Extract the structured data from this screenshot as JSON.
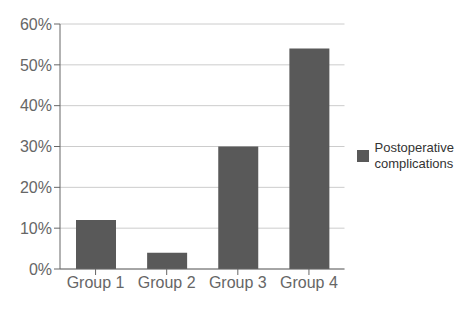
{
  "chart_data": {
    "type": "bar",
    "categories": [
      "Group 1",
      "Group 2",
      "Group 3",
      "Group 4"
    ],
    "series": [
      {
        "name": "Postoperative\ncomplications",
        "color": "#595959",
        "values": [
          0.12,
          0.04,
          0.3,
          0.54
        ]
      }
    ],
    "ylim": [
      0,
      0.6
    ],
    "yticks": [
      {
        "value": 0,
        "label": "0%"
      },
      {
        "value": 0.1,
        "label": "10%"
      },
      {
        "value": 0.2,
        "label": "20%"
      },
      {
        "value": 0.3,
        "label": "30%"
      },
      {
        "value": 0.4,
        "label": "40%"
      },
      {
        "value": 0.5,
        "label": "50%"
      },
      {
        "value": 0.6,
        "label": "60%"
      }
    ],
    "grid": true,
    "legend": "right"
  }
}
